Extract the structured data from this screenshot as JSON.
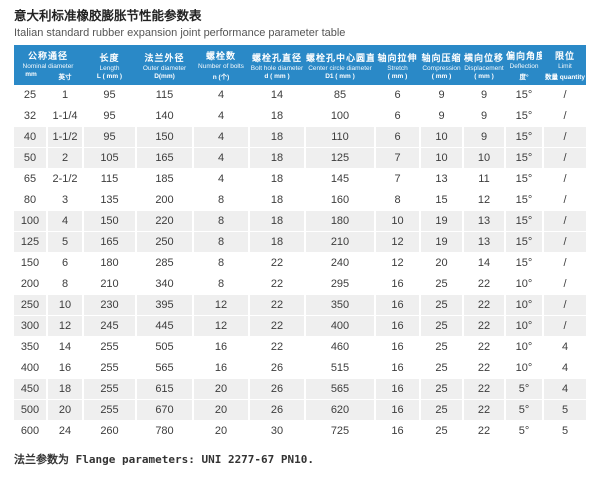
{
  "title": {
    "cn": "意大利标准橡胶膨胀节性能参数表",
    "en": "Italian standard rubber expansion joint performance parameter table"
  },
  "colors": {
    "header_bg": "#2a89c7",
    "shaded_row_bg": "#efefef",
    "header_text": "#ffffff",
    "body_text": "#3d3d3d"
  },
  "table": {
    "columns": [
      {
        "cn": "公称通径",
        "en": "Nominal diameter",
        "sub": [
          "mm",
          "英寸"
        ],
        "span": 2
      },
      {
        "cn": "长度",
        "en": "Length",
        "sub": [
          "L ( mm )"
        ],
        "span": 1
      },
      {
        "cn": "法兰外径",
        "en": "Outer diameter",
        "sub": [
          "D(mm)"
        ],
        "span": 1
      },
      {
        "cn": "螺栓数",
        "en": "Number of bolts",
        "sub": [
          "n (个)"
        ],
        "span": 1
      },
      {
        "cn": "螺栓孔直径",
        "en": "Bolt hole diameter",
        "sub": [
          "d ( mm )"
        ],
        "span": 1
      },
      {
        "cn": "螺栓孔中心圆直径",
        "en": "Center circle diameter",
        "sub": [
          "D1 ( mm )"
        ],
        "span": 1
      },
      {
        "cn": "轴向拉伸",
        "en": "Stretch",
        "sub": [
          "( mm )"
        ],
        "span": 1
      },
      {
        "cn": "轴向压缩",
        "en": "Compression",
        "sub": [
          "( mm )"
        ],
        "span": 1
      },
      {
        "cn": "横向位移",
        "en": "Displacement",
        "sub": [
          "( mm )"
        ],
        "span": 1
      },
      {
        "cn": "偏向角度",
        "en": "Deflection",
        "sub": [
          "度°"
        ],
        "span": 1
      },
      {
        "cn": "限位",
        "en": "Limit",
        "sub": [
          "数量 quantity"
        ],
        "span": 1
      }
    ],
    "rows": [
      [
        "25",
        "1",
        "95",
        "115",
        "4",
        "14",
        "85",
        "6",
        "9",
        "9",
        "15°",
        "/"
      ],
      [
        "32",
        "1-1/4",
        "95",
        "140",
        "4",
        "18",
        "100",
        "6",
        "9",
        "9",
        "15°",
        "/"
      ],
      [
        "40",
        "1-1/2",
        "95",
        "150",
        "4",
        "18",
        "110",
        "6",
        "10",
        "9",
        "15°",
        "/"
      ],
      [
        "50",
        "2",
        "105",
        "165",
        "4",
        "18",
        "125",
        "7",
        "10",
        "10",
        "15°",
        "/"
      ],
      [
        "65",
        "2-1/2",
        "115",
        "185",
        "4",
        "18",
        "145",
        "7",
        "13",
        "11",
        "15°",
        "/"
      ],
      [
        "80",
        "3",
        "135",
        "200",
        "8",
        "18",
        "160",
        "8",
        "15",
        "12",
        "15°",
        "/"
      ],
      [
        "100",
        "4",
        "150",
        "220",
        "8",
        "18",
        "180",
        "10",
        "19",
        "13",
        "15°",
        "/"
      ],
      [
        "125",
        "5",
        "165",
        "250",
        "8",
        "18",
        "210",
        "12",
        "19",
        "13",
        "15°",
        "/"
      ],
      [
        "150",
        "6",
        "180",
        "285",
        "8",
        "22",
        "240",
        "12",
        "20",
        "14",
        "15°",
        "/"
      ],
      [
        "200",
        "8",
        "210",
        "340",
        "8",
        "22",
        "295",
        "16",
        "25",
        "22",
        "10°",
        "/"
      ],
      [
        "250",
        "10",
        "230",
        "395",
        "12",
        "22",
        "350",
        "16",
        "25",
        "22",
        "10°",
        "/"
      ],
      [
        "300",
        "12",
        "245",
        "445",
        "12",
        "22",
        "400",
        "16",
        "25",
        "22",
        "10°",
        "/"
      ],
      [
        "350",
        "14",
        "255",
        "505",
        "16",
        "22",
        "460",
        "16",
        "25",
        "22",
        "10°",
        "4"
      ],
      [
        "400",
        "16",
        "255",
        "565",
        "16",
        "26",
        "515",
        "16",
        "25",
        "22",
        "10°",
        "4"
      ],
      [
        "450",
        "18",
        "255",
        "615",
        "20",
        "26",
        "565",
        "16",
        "25",
        "22",
        "5°",
        "4"
      ],
      [
        "500",
        "20",
        "255",
        "670",
        "20",
        "26",
        "620",
        "16",
        "25",
        "22",
        "5°",
        "5"
      ],
      [
        "600",
        "24",
        "260",
        "780",
        "20",
        "30",
        "725",
        "16",
        "25",
        "22",
        "5°",
        "5"
      ]
    ],
    "shaded_row_indexes": [
      2,
      3,
      6,
      7,
      10,
      11,
      14,
      15
    ]
  },
  "footer": {
    "text": "法兰参数为 Flange parameters: UNI 2277-67 PN10."
  }
}
